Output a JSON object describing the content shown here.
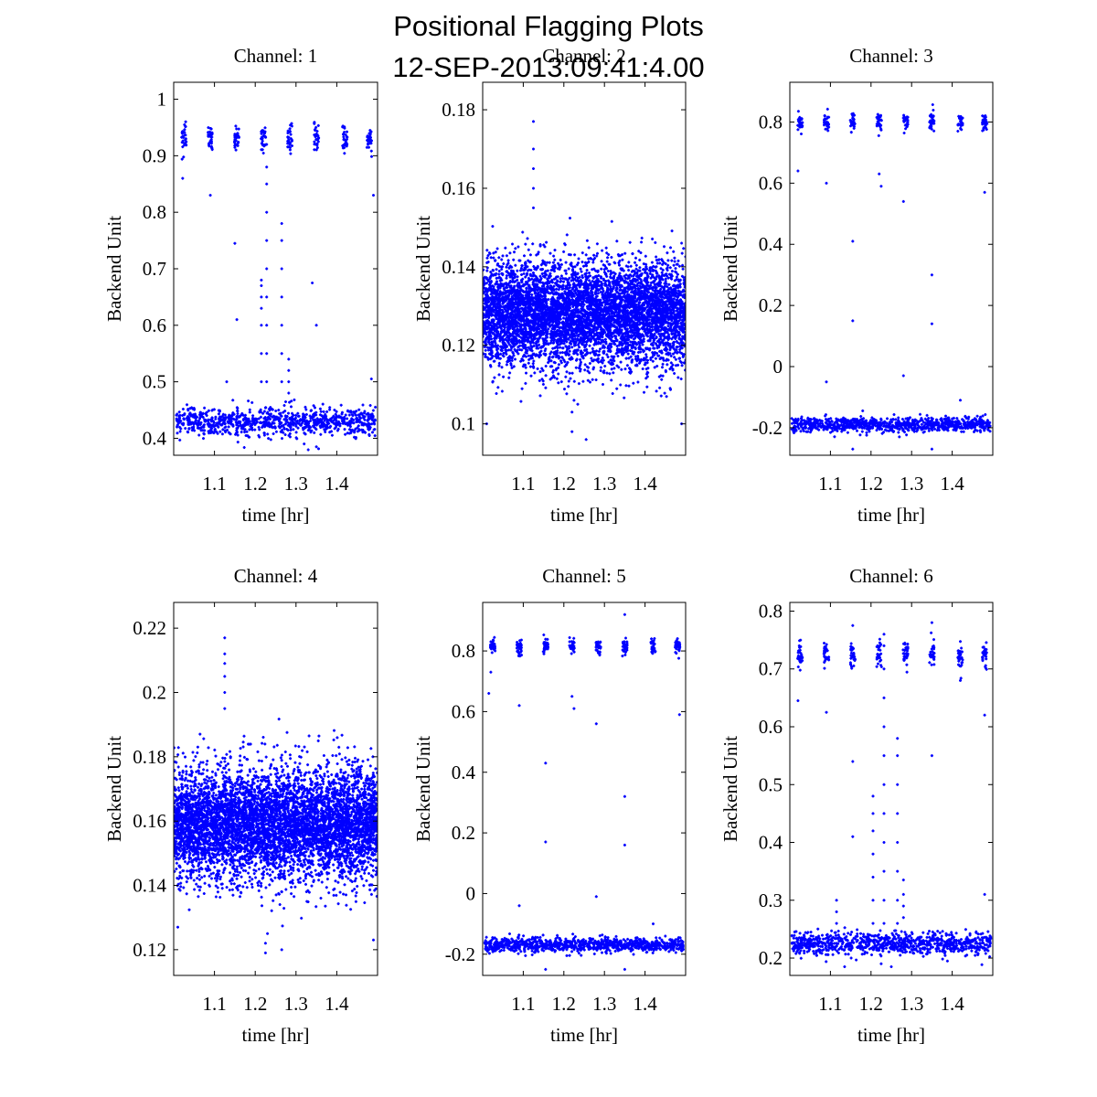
{
  "figure": {
    "title_line1": "Positional Flagging Plots",
    "title_line2": "12-SEP-2013:09:41:4.00",
    "marker_color": "#0000ff"
  },
  "chart_data": [
    {
      "type": "scatter",
      "title": "Channel: 1",
      "xlabel": "time [hr]",
      "ylabel": "Backend Unit",
      "xlim": [
        1.0,
        1.5
      ],
      "ylim": [
        0.37,
        1.03
      ],
      "xticks": [
        1.1,
        1.2,
        1.3,
        1.4
      ],
      "xtick_labels": [
        "1.1",
        "1.2",
        "1.3",
        "1.4"
      ],
      "yticks": [
        0.4,
        0.5,
        0.6,
        0.7,
        0.8,
        0.9,
        1.0
      ],
      "ytick_labels": [
        "0.4",
        "0.5",
        "0.6",
        "0.7",
        "0.8",
        "0.9",
        "1"
      ],
      "series": [
        {
          "name": "baseline band",
          "x_range": [
            1.005,
            1.495
          ],
          "y_center": 0.43,
          "y_spread": 0.012,
          "n": 900
        },
        {
          "name": "on-source clusters",
          "x_centers": [
            1.025,
            1.09,
            1.155,
            1.22,
            1.285,
            1.35,
            1.42,
            1.48
          ],
          "y_center": 0.93,
          "y_spread": 0.012,
          "n": 30
        },
        {
          "name": "spike 1.215",
          "x": [
            1.215,
            1.215,
            1.215,
            1.215,
            1.215,
            1.215,
            1.215
          ],
          "y": [
            0.5,
            0.55,
            0.6,
            0.63,
            0.65,
            0.67,
            0.68
          ]
        },
        {
          "name": "spike 1.228",
          "x": [
            1.228,
            1.228,
            1.228,
            1.228,
            1.228,
            1.228,
            1.228,
            1.228,
            1.228,
            1.228
          ],
          "y": [
            0.5,
            0.55,
            0.6,
            0.65,
            0.7,
            0.75,
            0.8,
            0.85,
            0.88,
            0.92
          ]
        },
        {
          "name": "spike 1.265",
          "x": [
            1.265,
            1.265,
            1.265,
            1.265,
            1.265,
            1.265,
            1.265
          ],
          "y": [
            0.5,
            0.55,
            0.6,
            0.65,
            0.7,
            0.75,
            0.78
          ]
        },
        {
          "name": "spike 1.285",
          "x": [
            1.282,
            1.282,
            1.282,
            1.282
          ],
          "y": [
            0.48,
            0.5,
            0.52,
            0.54
          ]
        },
        {
          "name": "outliers",
          "x": [
            1.022,
            1.09,
            1.13,
            1.15,
            1.155,
            1.34,
            1.35,
            1.49,
            1.485,
            1.35,
            1.32
          ],
          "y": [
            0.86,
            0.83,
            0.5,
            0.745,
            0.61,
            0.675,
            0.6,
            0.83,
            0.505,
            0.385,
            0.39
          ]
        }
      ]
    },
    {
      "type": "scatter",
      "title": "Channel: 2",
      "xlabel": "time [hr]",
      "ylabel": "Backend Unit",
      "xlim": [
        1.0,
        1.5
      ],
      "ylim": [
        0.092,
        0.187
      ],
      "xticks": [
        1.1,
        1.2,
        1.3,
        1.4
      ],
      "xtick_labels": [
        "1.1",
        "1.2",
        "1.3",
        "1.4"
      ],
      "yticks": [
        0.1,
        0.12,
        0.14,
        0.16,
        0.18
      ],
      "ytick_labels": [
        "0.1",
        "0.12",
        "0.14",
        "0.16",
        "0.18"
      ],
      "series": [
        {
          "name": "dense band",
          "x_range": [
            1.0,
            1.5
          ],
          "y_center": 0.128,
          "y_spread": 0.0065,
          "n": 6000
        },
        {
          "name": "spike 1.125",
          "x": [
            1.125,
            1.125,
            1.125,
            1.125,
            1.125
          ],
          "y": [
            0.155,
            0.16,
            0.165,
            0.17,
            0.177
          ]
        },
        {
          "name": "outliers",
          "x": [
            1.01,
            1.22,
            1.22,
            1.225,
            1.255,
            1.49
          ],
          "y": [
            0.1,
            0.098,
            0.103,
            0.106,
            0.096,
            0.1
          ]
        }
      ]
    },
    {
      "type": "scatter",
      "title": "Channel: 3",
      "xlabel": "time [hr]",
      "ylabel": "Backend Unit",
      "xlim": [
        1.0,
        1.5
      ],
      "ylim": [
        -0.29,
        0.93
      ],
      "xticks": [
        1.1,
        1.2,
        1.3,
        1.4
      ],
      "xtick_labels": [
        "1.1",
        "1.2",
        "1.3",
        "1.4"
      ],
      "yticks": [
        -0.2,
        0.0,
        0.2,
        0.4,
        0.6,
        0.8
      ],
      "ytick_labels": [
        "-0.2",
        "0",
        "0.2",
        "0.4",
        "0.6",
        "0.8"
      ],
      "series": [
        {
          "name": "baseline band",
          "x_range": [
            1.005,
            1.495
          ],
          "y_center": -0.19,
          "y_spread": 0.012,
          "n": 900
        },
        {
          "name": "on-source clusters",
          "x_centers": [
            1.025,
            1.09,
            1.155,
            1.22,
            1.285,
            1.35,
            1.42,
            1.48
          ],
          "y_center": 0.8,
          "y_spread": 0.015,
          "n": 30
        },
        {
          "name": "outliers",
          "x": [
            1.02,
            1.09,
            1.155,
            1.155,
            1.22,
            1.225,
            1.28,
            1.35,
            1.35,
            1.09,
            1.42,
            1.48,
            1.155,
            1.28,
            1.35
          ],
          "y": [
            0.64,
            0.6,
            0.41,
            0.15,
            0.63,
            0.59,
            0.54,
            0.3,
            0.14,
            -0.05,
            -0.11,
            0.57,
            -0.27,
            -0.03,
            -0.27
          ]
        }
      ]
    },
    {
      "type": "scatter",
      "title": "Channel: 4",
      "xlabel": "time [hr]",
      "ylabel": "Backend Unit",
      "xlim": [
        1.0,
        1.5
      ],
      "ylim": [
        0.112,
        0.228
      ],
      "xticks": [
        1.1,
        1.2,
        1.3,
        1.4
      ],
      "xtick_labels": [
        "1.1",
        "1.2",
        "1.3",
        "1.4"
      ],
      "yticks": [
        0.12,
        0.14,
        0.16,
        0.18,
        0.2,
        0.22
      ],
      "ytick_labels": [
        "0.12",
        "0.14",
        "0.16",
        "0.18",
        "0.2",
        "0.22"
      ],
      "series": [
        {
          "name": "dense band",
          "x_range": [
            1.0,
            1.5
          ],
          "y_center": 0.159,
          "y_spread": 0.0085,
          "n": 6000
        },
        {
          "name": "spike 1.125",
          "x": [
            1.125,
            1.125,
            1.125,
            1.125,
            1.125,
            1.125
          ],
          "y": [
            0.195,
            0.2,
            0.205,
            0.209,
            0.212,
            0.217
          ]
        },
        {
          "name": "outliers",
          "x": [
            1.01,
            1.225,
            1.225,
            1.23,
            1.265,
            1.49
          ],
          "y": [
            0.127,
            0.119,
            0.122,
            0.125,
            0.12,
            0.123
          ]
        }
      ]
    },
    {
      "type": "scatter",
      "title": "Channel: 5",
      "xlabel": "time [hr]",
      "ylabel": "Backend Unit",
      "xlim": [
        1.0,
        1.5
      ],
      "ylim": [
        -0.27,
        0.96
      ],
      "xticks": [
        1.1,
        1.2,
        1.3,
        1.4
      ],
      "xtick_labels": [
        "1.1",
        "1.2",
        "1.3",
        "1.4"
      ],
      "yticks": [
        -0.2,
        0.0,
        0.2,
        0.4,
        0.6,
        0.8
      ],
      "ytick_labels": [
        "-0.2",
        "0",
        "0.2",
        "0.4",
        "0.6",
        "0.8"
      ],
      "series": [
        {
          "name": "baseline band",
          "x_range": [
            1.005,
            1.495
          ],
          "y_center": -0.17,
          "y_spread": 0.012,
          "n": 900
        },
        {
          "name": "on-source clusters",
          "x_centers": [
            1.025,
            1.09,
            1.155,
            1.22,
            1.285,
            1.35,
            1.42,
            1.48
          ],
          "y_center": 0.815,
          "y_spread": 0.015,
          "n": 30
        },
        {
          "name": "outliers",
          "x": [
            1.02,
            1.015,
            1.09,
            1.155,
            1.155,
            1.22,
            1.225,
            1.28,
            1.35,
            1.35,
            1.09,
            1.42,
            1.485,
            1.155,
            1.28,
            1.35,
            1.35
          ],
          "y": [
            0.73,
            0.66,
            0.62,
            0.43,
            0.17,
            0.65,
            0.61,
            0.56,
            0.32,
            0.16,
            -0.04,
            -0.1,
            0.59,
            -0.25,
            -0.01,
            -0.25,
            0.92
          ]
        }
      ]
    },
    {
      "type": "scatter",
      "title": "Channel: 6",
      "xlabel": "time [hr]",
      "ylabel": "Backend Unit",
      "xlim": [
        1.0,
        1.5
      ],
      "ylim": [
        0.17,
        0.815
      ],
      "xticks": [
        1.1,
        1.2,
        1.3,
        1.4
      ],
      "xtick_labels": [
        "1.1",
        "1.2",
        "1.3",
        "1.4"
      ],
      "yticks": [
        0.2,
        0.3,
        0.4,
        0.5,
        0.6,
        0.7,
        0.8
      ],
      "ytick_labels": [
        "0.2",
        "0.3",
        "0.4",
        "0.5",
        "0.6",
        "0.7",
        "0.8"
      ],
      "series": [
        {
          "name": "baseline band",
          "x_range": [
            1.005,
            1.495
          ],
          "y_center": 0.225,
          "y_spread": 0.01,
          "n": 900
        },
        {
          "name": "on-source clusters",
          "x_centers": [
            1.025,
            1.09,
            1.155,
            1.22,
            1.285,
            1.35,
            1.42,
            1.48
          ],
          "y_center": 0.725,
          "y_spread": 0.012,
          "n": 30
        },
        {
          "name": "spike 1.205",
          "x": [
            1.205,
            1.205,
            1.205,
            1.205,
            1.205,
            1.205,
            1.205
          ],
          "y": [
            0.26,
            0.3,
            0.34,
            0.38,
            0.42,
            0.45,
            0.48
          ]
        },
        {
          "name": "spike 1.23",
          "x": [
            1.232,
            1.232,
            1.232,
            1.232,
            1.232,
            1.232,
            1.232,
            1.232,
            1.232,
            1.232,
            1.232,
            1.232
          ],
          "y": [
            0.26,
            0.3,
            0.35,
            0.4,
            0.45,
            0.5,
            0.55,
            0.6,
            0.65,
            0.7,
            0.74,
            0.76
          ]
        },
        {
          "name": "spike 1.265",
          "x": [
            1.265,
            1.265,
            1.265,
            1.265,
            1.265,
            1.265,
            1.265,
            1.265
          ],
          "y": [
            0.26,
            0.3,
            0.35,
            0.4,
            0.45,
            0.5,
            0.55,
            0.58
          ]
        },
        {
          "name": "spike 1.28",
          "x": [
            1.28,
            1.28,
            1.28,
            1.28
          ],
          "y": [
            0.27,
            0.29,
            0.31,
            0.335
          ]
        },
        {
          "name": "spike 1.115",
          "x": [
            1.115,
            1.115,
            1.115
          ],
          "y": [
            0.26,
            0.28,
            0.3
          ]
        },
        {
          "name": "outliers",
          "x": [
            1.02,
            1.09,
            1.155,
            1.155,
            1.35,
            1.48,
            1.48,
            1.35,
            1.155,
            1.42,
            1.25,
            1.135,
            1.225
          ],
          "y": [
            0.645,
            0.625,
            0.54,
            0.41,
            0.78,
            0.62,
            0.31,
            0.55,
            0.775,
            0.68,
            0.185,
            0.185,
            0.19
          ]
        }
      ]
    }
  ]
}
